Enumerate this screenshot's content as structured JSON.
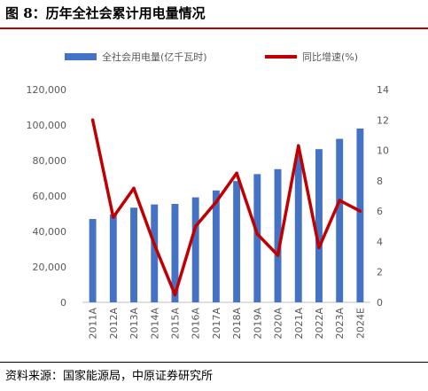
{
  "figure": {
    "title": "图 8：历年全社会累计用电量情况",
    "source": "资料来源：国家能源局，中原证券研究所"
  },
  "colors": {
    "bar": "#4472c4",
    "line": "#c00000",
    "rule": "#c00000"
  },
  "chart_data": {
    "type": "bar",
    "categories": [
      "2011A",
      "2012A",
      "2013A",
      "2014A",
      "2015A",
      "2016A",
      "2017A",
      "2018A",
      "2019A",
      "2020A",
      "2021A",
      "2022A",
      "2023A",
      "2024E"
    ],
    "series": [
      {
        "name": "全社会用电量(亿千瓦时)",
        "type": "bar",
        "axis": "left",
        "values": [
          47000,
          49600,
          53400,
          55200,
          55500,
          59200,
          63100,
          68400,
          72300,
          75100,
          83100,
          86400,
          92200,
          98000
        ]
      },
      {
        "name": "同比增速(%)",
        "type": "line",
        "axis": "right",
        "values": [
          12.0,
          5.6,
          7.5,
          3.8,
          0.5,
          5.0,
          6.6,
          8.5,
          4.5,
          3.1,
          10.3,
          3.6,
          6.7,
          6.0
        ]
      }
    ],
    "y_left": {
      "range": [
        0,
        120000
      ],
      "ticks": [
        "0",
        "20,000",
        "40,000",
        "60,000",
        "80,000",
        "100,000",
        "120,000"
      ]
    },
    "y_right": {
      "range": [
        0,
        14
      ],
      "ticks": [
        "0",
        "2",
        "4",
        "6",
        "8",
        "10",
        "12",
        "14"
      ]
    },
    "grid": false,
    "legend_position": "top"
  }
}
